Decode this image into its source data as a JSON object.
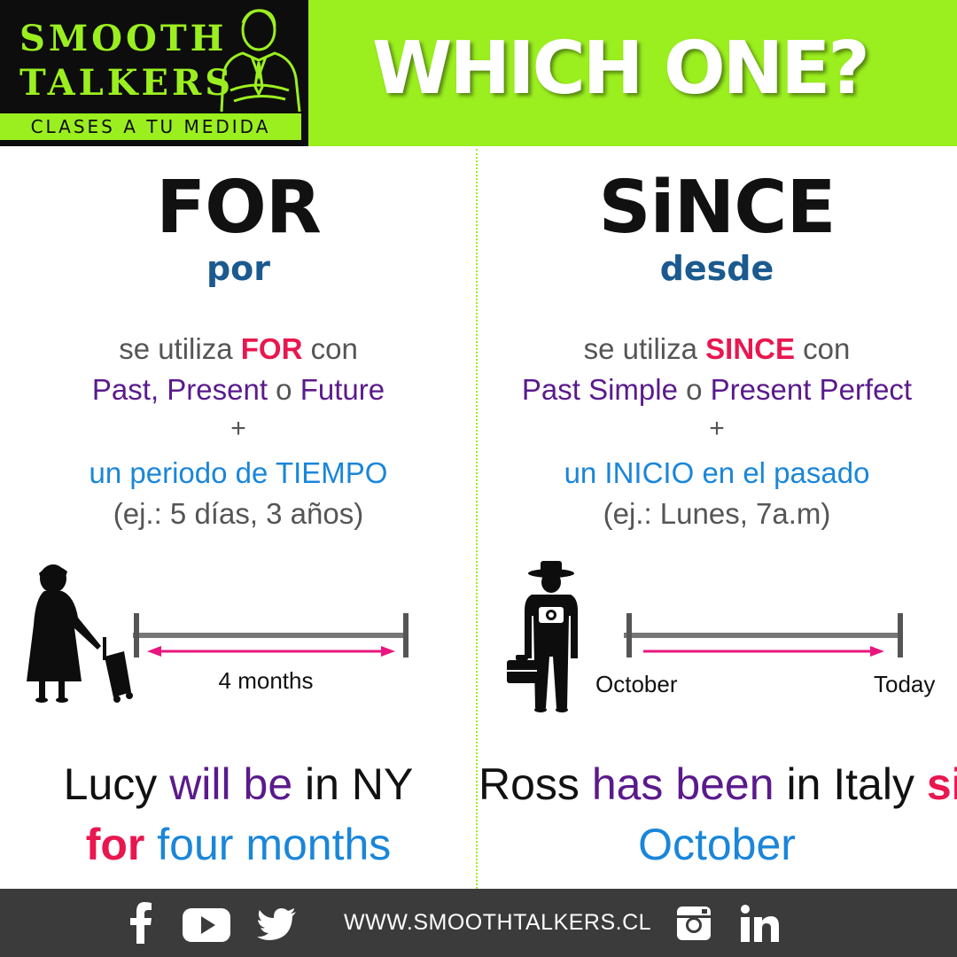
{
  "brand": {
    "name_line1": "SMOOTH",
    "name_line2": "TALKERS",
    "tagline": "CLASES A TU MEDIDA",
    "accent_color": "#9bef1f"
  },
  "title": "WHICH ONE?",
  "left": {
    "word": "FOR",
    "translation": "por",
    "rule_line1": {
      "pre": "se utiliza ",
      "keyword": "FOR",
      "post": " con"
    },
    "rule_line2": {
      "a": "Past, Present",
      "o": " o ",
      "b": "Future"
    },
    "plus": "+",
    "rule_line3": "un periodo de TIEMPO",
    "rule_line4": "(ej.: 5 días, 3 años)",
    "timeline_label": "4 months",
    "example_line1": {
      "a": "Lucy ",
      "b": "will be",
      "c": " in NY"
    },
    "example_line2": {
      "a": "for",
      "b": " four months"
    },
    "icon": "woman-with-suitcase-icon"
  },
  "right": {
    "word": "SiNCE",
    "translation": "desde",
    "rule_line1": {
      "pre": "se utiliza ",
      "keyword": "SINCE",
      "post": " con"
    },
    "rule_line2": {
      "a": "Past Simple",
      "o": " o ",
      "b": "Present Perfect"
    },
    "plus": "+",
    "rule_line3": "un INICIO en el pasado",
    "rule_line4": "(ej.: Lunes, 7a.m)",
    "timeline_start": "October",
    "timeline_end": "Today",
    "example_line1": {
      "a": "Ross ",
      "b": "has been",
      "c": " in Italy ",
      "d": "since"
    },
    "example_line2": "October",
    "icon": "tourist-with-camera-icon"
  },
  "footer": {
    "url": "WWW.SMOOTHTALKERS.CL",
    "icons": [
      "facebook-icon",
      "youtube-icon",
      "twitter-icon",
      "instagram-icon",
      "linkedin-icon"
    ]
  }
}
